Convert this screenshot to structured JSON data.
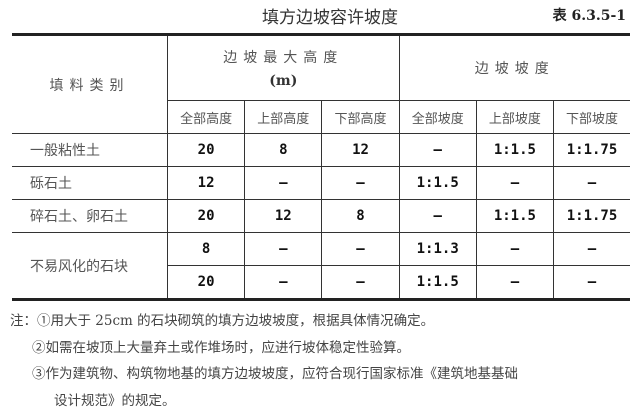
{
  "title": "填方边坡容许坡度",
  "table_number": "表 6.3.5-1",
  "table": {
    "header": {
      "category": "填料类别",
      "max_height": "边坡最大高度",
      "max_height_unit": "(m)",
      "slope": "边坡坡度",
      "sub": [
        "全部高度",
        "上部高度",
        "下部高度",
        "全部坡度",
        "上部坡度",
        "下部坡度"
      ]
    },
    "rows": [
      {
        "category": "一般粘性土",
        "cells": [
          "20",
          "8",
          "12",
          "—",
          "1:1.5",
          "1:1.75"
        ]
      },
      {
        "category": "砾石土",
        "cells": [
          "12",
          "—",
          "—",
          "1:1.5",
          "—",
          "—"
        ]
      },
      {
        "category": "碎石土、卵石土",
        "cells": [
          "20",
          "12",
          "8",
          "—",
          "1:1.5",
          "1:1.75"
        ]
      },
      {
        "category": "不易风化的石块",
        "cells": [
          "8",
          "—",
          "—",
          "1:1.3",
          "—",
          "—"
        ]
      },
      {
        "category": "",
        "cells": [
          "20",
          "—",
          "—",
          "1:1.5",
          "—",
          "—"
        ]
      }
    ]
  },
  "notes": [
    "注：①用大于 25cm 的石块砌筑的填方边坡坡度，根据具体情况确定。",
    "②如需在坡顶上大量弃土或作堆场时，应进行坡体稳定性验算。",
    "③作为建筑物、构筑物地基的填方边坡坡度，应符合现行国家标准《建筑地基基础",
    "设计规范》的规定。"
  ]
}
